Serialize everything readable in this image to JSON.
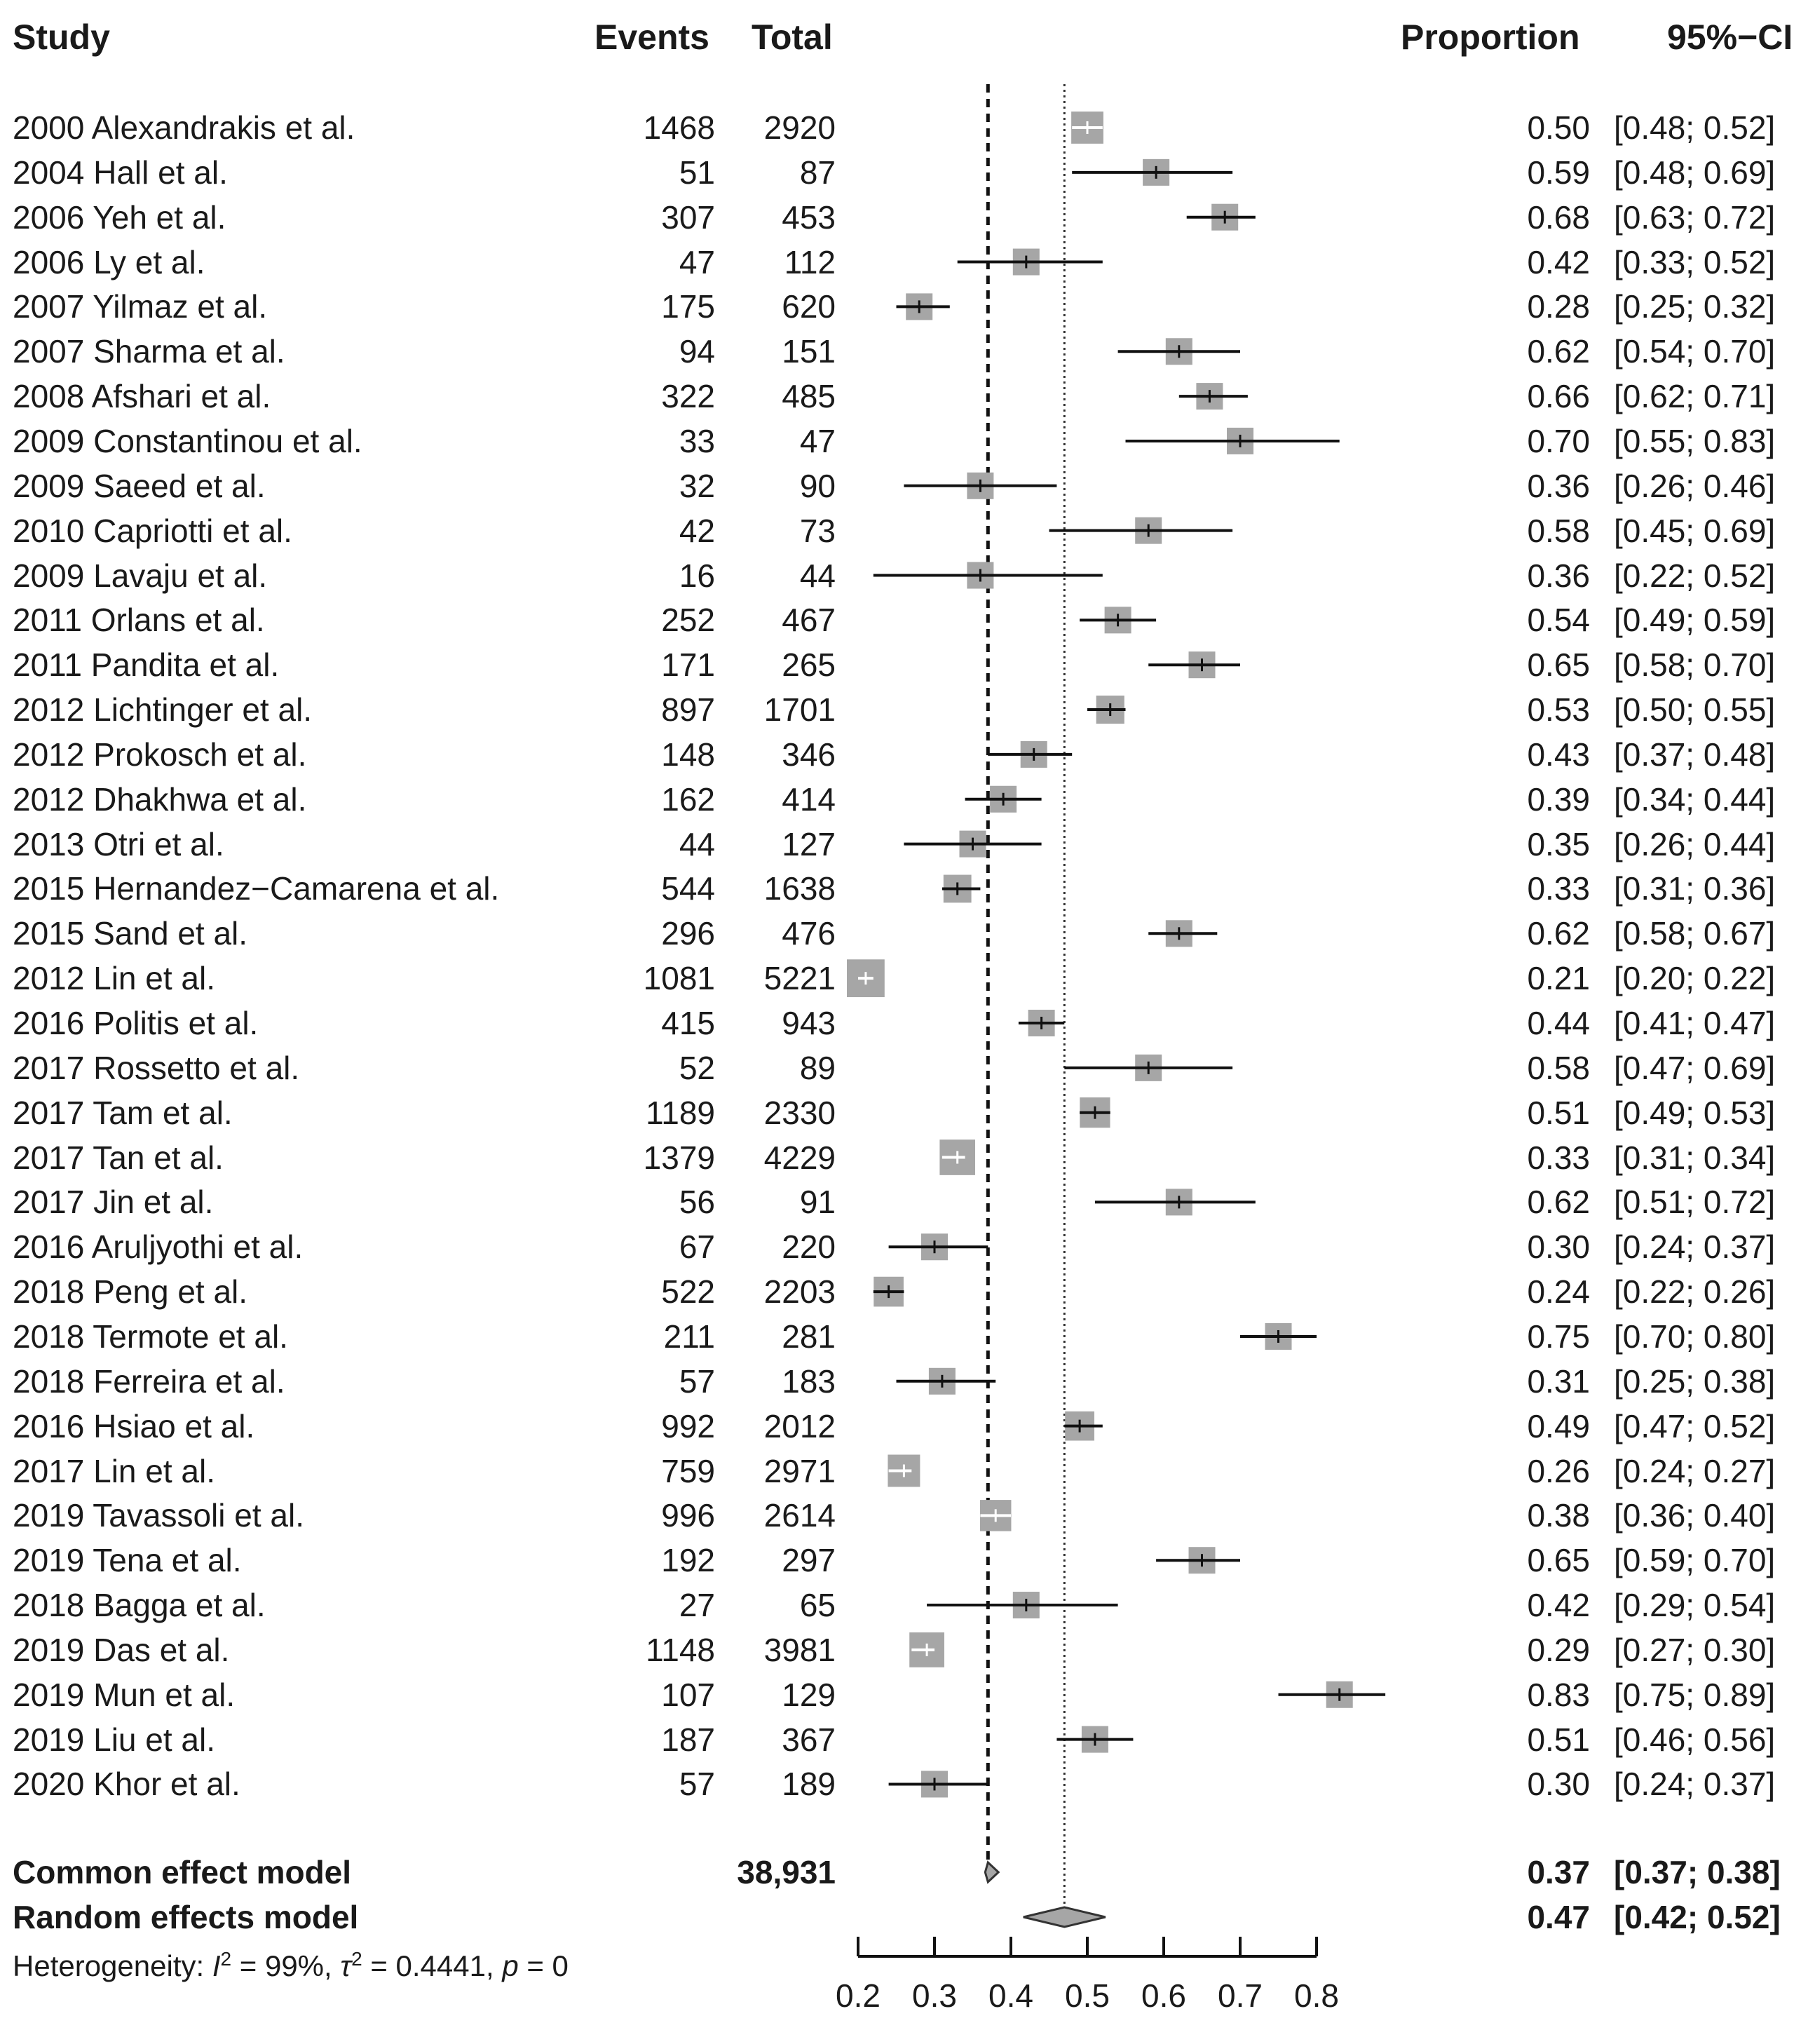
{
  "headers": {
    "study": "Study",
    "events": "Events",
    "total": "Total",
    "proportion": "Proportion",
    "ci": "95%−CI"
  },
  "chart_data": {
    "type": "forest",
    "xlabel": "",
    "xlim": [
      0.2,
      0.8
    ],
    "ticks": [
      "0.2",
      "0.3",
      "0.4",
      "0.5",
      "0.6",
      "0.7",
      "0.8"
    ],
    "common_line": 0.37,
    "random_line": 0.47,
    "studies": [
      {
        "study": "2000 Alexandrakis et al.",
        "events": "1468",
        "total": "2920",
        "prop": 0.5,
        "lo": 0.48,
        "hi": 0.52,
        "prop_label": "0.50",
        "ci_label": "[0.48; 0.52]"
      },
      {
        "study": "2004 Hall et al.",
        "events": "51",
        "total": "87",
        "prop": 0.59,
        "lo": 0.48,
        "hi": 0.69,
        "prop_label": "0.59",
        "ci_label": "[0.48; 0.69]"
      },
      {
        "study": "2006 Yeh et al.",
        "events": "307",
        "total": "453",
        "prop": 0.68,
        "lo": 0.63,
        "hi": 0.72,
        "prop_label": "0.68",
        "ci_label": "[0.63; 0.72]"
      },
      {
        "study": "2006 Ly et al.",
        "events": "47",
        "total": "112",
        "prop": 0.42,
        "lo": 0.33,
        "hi": 0.52,
        "prop_label": "0.42",
        "ci_label": "[0.33; 0.52]"
      },
      {
        "study": "2007 Yilmaz et al.",
        "events": "175",
        "total": "620",
        "prop": 0.28,
        "lo": 0.25,
        "hi": 0.32,
        "prop_label": "0.28",
        "ci_label": "[0.25; 0.32]"
      },
      {
        "study": "2007 Sharma et al.",
        "events": "94",
        "total": "151",
        "prop": 0.62,
        "lo": 0.54,
        "hi": 0.7,
        "prop_label": "0.62",
        "ci_label": "[0.54; 0.70]"
      },
      {
        "study": "2008 Afshari et al.",
        "events": "322",
        "total": "485",
        "prop": 0.66,
        "lo": 0.62,
        "hi": 0.71,
        "prop_label": "0.66",
        "ci_label": "[0.62; 0.71]"
      },
      {
        "study": "2009 Constantinou et al.",
        "events": "33",
        "total": "47",
        "prop": 0.7,
        "lo": 0.55,
        "hi": 0.83,
        "prop_label": "0.70",
        "ci_label": "[0.55; 0.83]"
      },
      {
        "study": "2009 Saeed et al.",
        "events": "32",
        "total": "90",
        "prop": 0.36,
        "lo": 0.26,
        "hi": 0.46,
        "prop_label": "0.36",
        "ci_label": "[0.26; 0.46]"
      },
      {
        "study": "2010 Capriotti et al.",
        "events": "42",
        "total": "73",
        "prop": 0.58,
        "lo": 0.45,
        "hi": 0.69,
        "prop_label": "0.58",
        "ci_label": "[0.45; 0.69]"
      },
      {
        "study": "2009 Lavaju et al.",
        "events": "16",
        "total": "44",
        "prop": 0.36,
        "lo": 0.22,
        "hi": 0.52,
        "prop_label": "0.36",
        "ci_label": "[0.22; 0.52]"
      },
      {
        "study": "2011 Orlans et al.",
        "events": "252",
        "total": "467",
        "prop": 0.54,
        "lo": 0.49,
        "hi": 0.59,
        "prop_label": "0.54",
        "ci_label": "[0.49; 0.59]"
      },
      {
        "study": "2011 Pandita et al.",
        "events": "171",
        "total": "265",
        "prop": 0.65,
        "lo": 0.58,
        "hi": 0.7,
        "prop_label": "0.65",
        "ci_label": "[0.58; 0.70]"
      },
      {
        "study": "2012 Lichtinger et al.",
        "events": "897",
        "total": "1701",
        "prop": 0.53,
        "lo": 0.5,
        "hi": 0.55,
        "prop_label": "0.53",
        "ci_label": "[0.50; 0.55]"
      },
      {
        "study": "2012 Prokosch et al.",
        "events": "148",
        "total": "346",
        "prop": 0.43,
        "lo": 0.37,
        "hi": 0.48,
        "prop_label": "0.43",
        "ci_label": "[0.37; 0.48]"
      },
      {
        "study": "2012 Dhakhwa et al.",
        "events": "162",
        "total": "414",
        "prop": 0.39,
        "lo": 0.34,
        "hi": 0.44,
        "prop_label": "0.39",
        "ci_label": "[0.34; 0.44]"
      },
      {
        "study": "2013 Otri et al.",
        "events": "44",
        "total": "127",
        "prop": 0.35,
        "lo": 0.26,
        "hi": 0.44,
        "prop_label": "0.35",
        "ci_label": "[0.26; 0.44]"
      },
      {
        "study": "2015 Hernandez−Camarena et al.",
        "events": "544",
        "total": "1638",
        "prop": 0.33,
        "lo": 0.31,
        "hi": 0.36,
        "prop_label": "0.33",
        "ci_label": "[0.31; 0.36]"
      },
      {
        "study": "2015 Sand et al.",
        "events": "296",
        "total": "476",
        "prop": 0.62,
        "lo": 0.58,
        "hi": 0.67,
        "prop_label": "0.62",
        "ci_label": "[0.58; 0.67]"
      },
      {
        "study": "2012 Lin et al.",
        "events": "1081",
        "total": "5221",
        "prop": 0.21,
        "lo": 0.2,
        "hi": 0.22,
        "prop_label": "0.21",
        "ci_label": "[0.20; 0.22]"
      },
      {
        "study": "2016 Politis et al.",
        "events": "415",
        "total": "943",
        "prop": 0.44,
        "lo": 0.41,
        "hi": 0.47,
        "prop_label": "0.44",
        "ci_label": "[0.41; 0.47]"
      },
      {
        "study": "2017 Rossetto et al.",
        "events": "52",
        "total": "89",
        "prop": 0.58,
        "lo": 0.47,
        "hi": 0.69,
        "prop_label": "0.58",
        "ci_label": "[0.47; 0.69]"
      },
      {
        "study": "2017 Tam et al.",
        "events": "1189",
        "total": "2330",
        "prop": 0.51,
        "lo": 0.49,
        "hi": 0.53,
        "prop_label": "0.51",
        "ci_label": "[0.49; 0.53]"
      },
      {
        "study": "2017 Tan et al.",
        "events": "1379",
        "total": "4229",
        "prop": 0.33,
        "lo": 0.31,
        "hi": 0.34,
        "prop_label": "0.33",
        "ci_label": "[0.31; 0.34]"
      },
      {
        "study": "2017 Jin et al.",
        "events": "56",
        "total": "91",
        "prop": 0.62,
        "lo": 0.51,
        "hi": 0.72,
        "prop_label": "0.62",
        "ci_label": "[0.51; 0.72]"
      },
      {
        "study": "2016 Aruljyothi et al.",
        "events": "67",
        "total": "220",
        "prop": 0.3,
        "lo": 0.24,
        "hi": 0.37,
        "prop_label": "0.30",
        "ci_label": "[0.24; 0.37]"
      },
      {
        "study": "2018 Peng et al.",
        "events": "522",
        "total": "2203",
        "prop": 0.24,
        "lo": 0.22,
        "hi": 0.26,
        "prop_label": "0.24",
        "ci_label": "[0.22; 0.26]"
      },
      {
        "study": "2018 Termote et al.",
        "events": "211",
        "total": "281",
        "prop": 0.75,
        "lo": 0.7,
        "hi": 0.8,
        "prop_label": "0.75",
        "ci_label": "[0.70; 0.80]"
      },
      {
        "study": "2018 Ferreira et al.",
        "events": "57",
        "total": "183",
        "prop": 0.31,
        "lo": 0.25,
        "hi": 0.38,
        "prop_label": "0.31",
        "ci_label": "[0.25; 0.38]"
      },
      {
        "study": "2016 Hsiao et al.",
        "events": "992",
        "total": "2012",
        "prop": 0.49,
        "lo": 0.47,
        "hi": 0.52,
        "prop_label": "0.49",
        "ci_label": "[0.47; 0.52]"
      },
      {
        "study": "2017 Lin et al.",
        "events": "759",
        "total": "2971",
        "prop": 0.26,
        "lo": 0.24,
        "hi": 0.27,
        "prop_label": "0.26",
        "ci_label": "[0.24; 0.27]"
      },
      {
        "study": "2019 Tavassoli et al.",
        "events": "996",
        "total": "2614",
        "prop": 0.38,
        "lo": 0.36,
        "hi": 0.4,
        "prop_label": "0.38",
        "ci_label": "[0.36; 0.40]"
      },
      {
        "study": "2019 Tena et al.",
        "events": "192",
        "total": "297",
        "prop": 0.65,
        "lo": 0.59,
        "hi": 0.7,
        "prop_label": "0.65",
        "ci_label": "[0.59; 0.70]"
      },
      {
        "study": "2018 Bagga et al.",
        "events": "27",
        "total": "65",
        "prop": 0.42,
        "lo": 0.29,
        "hi": 0.54,
        "prop_label": "0.42",
        "ci_label": "[0.29; 0.54]"
      },
      {
        "study": "2019 Das et al.",
        "events": "1148",
        "total": "3981",
        "prop": 0.29,
        "lo": 0.27,
        "hi": 0.3,
        "prop_label": "0.29",
        "ci_label": "[0.27; 0.30]"
      },
      {
        "study": "2019 Mun et al.",
        "events": "107",
        "total": "129",
        "prop": 0.83,
        "lo": 0.75,
        "hi": 0.89,
        "prop_label": "0.83",
        "ci_label": "[0.75; 0.89]"
      },
      {
        "study": "2019 Liu et al.",
        "events": "187",
        "total": "367",
        "prop": 0.51,
        "lo": 0.46,
        "hi": 0.56,
        "prop_label": "0.51",
        "ci_label": "[0.46; 0.56]"
      },
      {
        "study": "2020 Khor et al.",
        "events": "57",
        "total": "189",
        "prop": 0.3,
        "lo": 0.24,
        "hi": 0.37,
        "prop_label": "0.30",
        "ci_label": "[0.24; 0.37]"
      }
    ],
    "summary": [
      {
        "label": "Common effect model",
        "total": "38,931",
        "prop": 0.37,
        "lo": 0.37,
        "hi": 0.38,
        "prop_label": "0.37",
        "ci_label": "[0.37; 0.38]"
      },
      {
        "label": "Random effects model",
        "total": "",
        "prop": 0.47,
        "lo": 0.42,
        "hi": 0.52,
        "prop_label": "0.47",
        "ci_label": "[0.42; 0.52]"
      }
    ],
    "heterogeneity": {
      "prefix": "Heterogeneity: ",
      "i2_symbol": "I",
      "i2_value": " = 99%,  ",
      "tau2_symbol": "τ",
      "tau2_value": " = 0.4441, ",
      "p_symbol": "p",
      "p_value": " = 0"
    }
  }
}
